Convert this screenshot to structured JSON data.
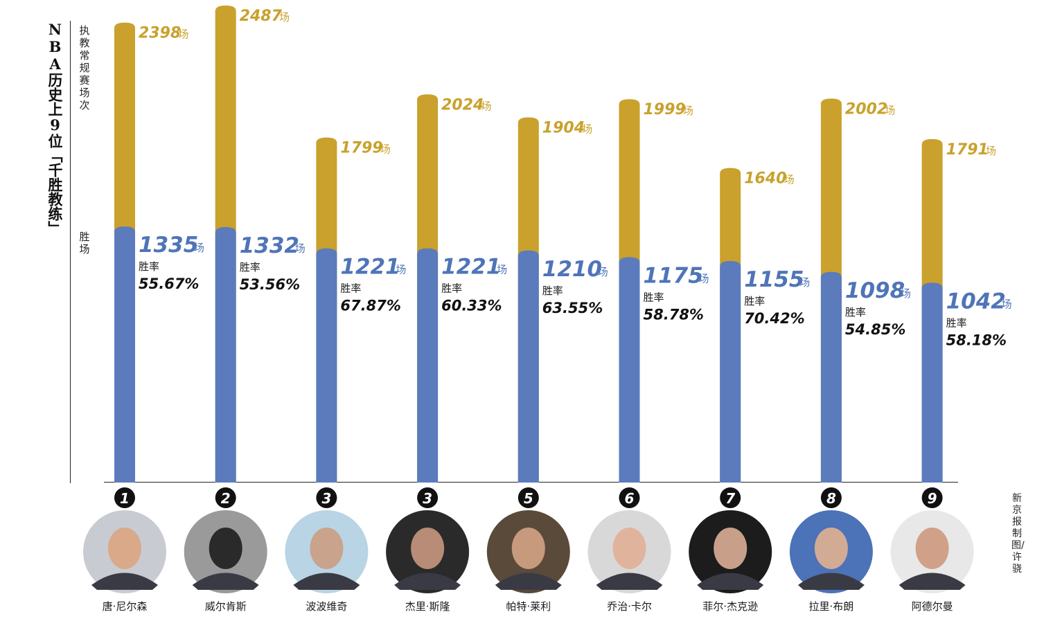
{
  "title": "NBA历史上9位「千胜教练」",
  "axis": {
    "total_label": "执教常规赛场次",
    "wins_label": "胜场"
  },
  "unit": "场",
  "rate_label": "胜率",
  "source": "新京报制图/许骁",
  "colors": {
    "total": "#c9a12c",
    "wins": "#5b7bbd",
    "wins_text": "#4f74b8",
    "total_text": "#c9a12c"
  },
  "chart_data": {
    "type": "bar",
    "categories": [
      "唐·尼尔森",
      "威尔肯斯",
      "波波维奇",
      "杰里·斯隆",
      "帕特·莱利",
      "乔治·卡尔",
      "菲尔·杰克逊",
      "拉里·布朗",
      "阿德尔曼"
    ],
    "ranks": [
      "1",
      "2",
      "3",
      "3",
      "5",
      "6",
      "7",
      "8",
      "9"
    ],
    "series": [
      {
        "name": "执教常规赛场次",
        "values": [
          2398,
          2487,
          1799,
          2024,
          1904,
          1999,
          1640,
          2002,
          1791
        ]
      },
      {
        "name": "胜场",
        "values": [
          1335,
          1332,
          1221,
          1221,
          1210,
          1175,
          1155,
          1098,
          1042
        ]
      }
    ],
    "win_rates": [
      "55.67%",
      "53.56%",
      "67.87%",
      "60.33%",
      "63.55%",
      "58.78%",
      "70.42%",
      "54.85%",
      "58.18%"
    ],
    "ylim": [
      0,
      2500
    ],
    "grid": false
  }
}
